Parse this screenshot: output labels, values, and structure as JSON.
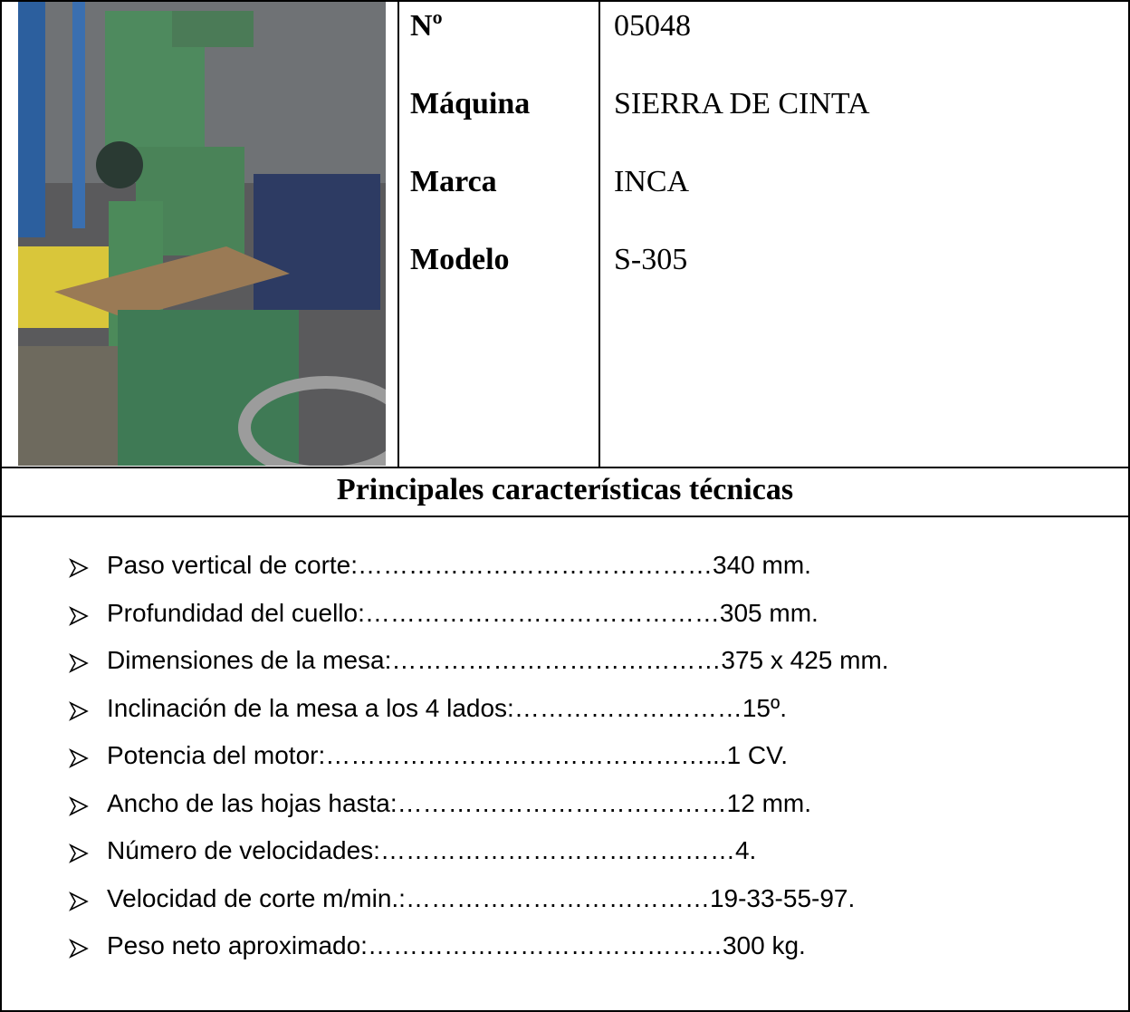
{
  "header": {
    "rows": [
      {
        "label": "Nº",
        "value": "05048"
      },
      {
        "label": "Máquina",
        "value": "SIERRA DE CINTA"
      },
      {
        "label": "Marca",
        "value": "INCA"
      },
      {
        "label": "Modelo",
        "value": "S-305"
      }
    ]
  },
  "section": {
    "title": "Principales características técnicas",
    "items": [
      "Paso vertical de corte:……………………………………340 mm.",
      "Profundidad del cuello:……………………………………305 mm.",
      "Dimensiones de la mesa:…………………………………375 x 425 mm.",
      "Inclinación de la mesa a los 4 lados:………………………15º.",
      "Potencia del motor:………………………………………...1 CV.",
      "Ancho de las hojas hasta:…………………………………12 mm.",
      "Número de velocidades:……………………………………4.",
      "Velocidad de corte m/min.:………………………………19-33-55-97.",
      "Peso neto aproximado:……………………………………300 kg."
    ]
  }
}
